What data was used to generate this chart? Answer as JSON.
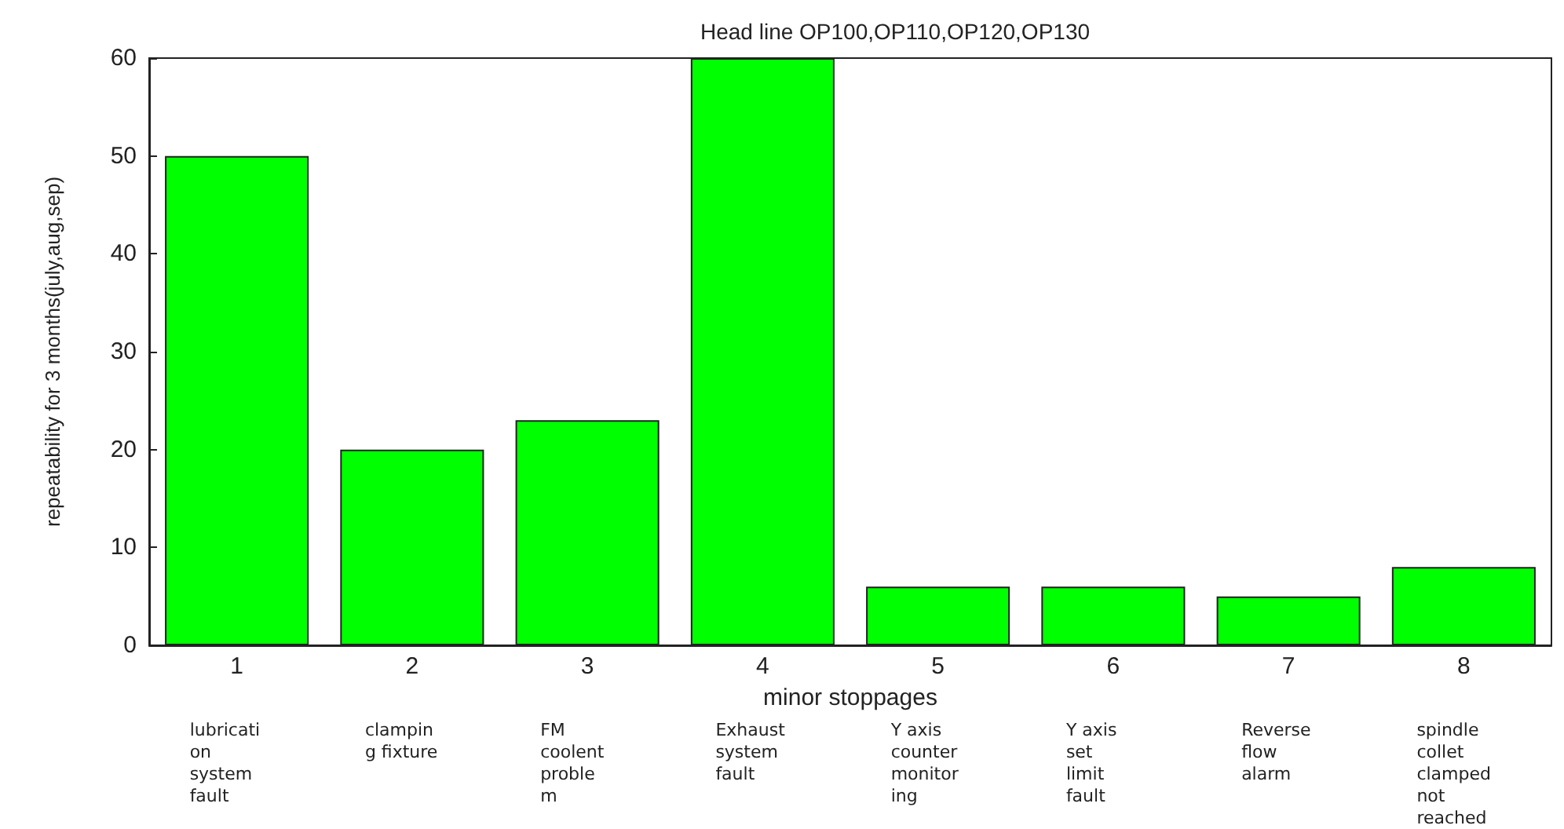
{
  "chart_data": {
    "type": "bar",
    "title": "Head line OP100,OP110,OP120,OP130",
    "xlabel": "minor stoppages",
    "ylabel": "repeatability for 3 months(july,aug,sep)",
    "categories": [
      "1",
      "2",
      "3",
      "4",
      "5",
      "6",
      "7",
      "8"
    ],
    "values": [
      50,
      20,
      23,
      60,
      6,
      6,
      5,
      8
    ],
    "color": "#00ff00",
    "ylim": [
      0,
      60
    ],
    "yticks": [
      0,
      10,
      20,
      30,
      40,
      50,
      60
    ],
    "grid": false,
    "annotations": [
      "lubricati\non\nsystem\nfault",
      "clampin\ng fixture",
      "FM\ncoolent\nproble\nm",
      "Exhaust\nsystem\nfault",
      "Y axis\ncounter\nmonitor\ning",
      "Y axis\nset\nlimit\nfault",
      "Reverse\nflow\nalarm",
      "spindle\ncollet\nclamped\nnot\nreached"
    ]
  }
}
